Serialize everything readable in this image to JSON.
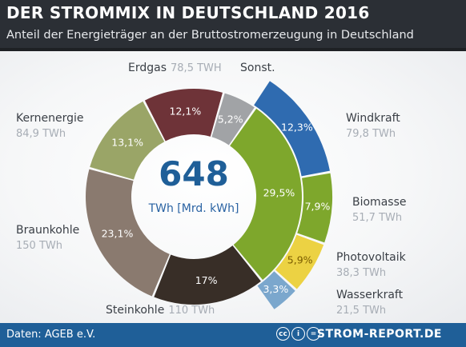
{
  "header": {
    "title": "DER STROMMIX IN DEUTSCHLAND 2016",
    "subtitle": "Anteil der Energieträger an der Bruttostromerzeugung in Deutschland"
  },
  "center": {
    "value": "648",
    "unit": "TWh [Mrd. kWh]"
  },
  "footer": {
    "source": "Daten: AGEB e.V.",
    "brand": "STROM-REPORT.DE",
    "license_icons": [
      "cc-icon",
      "info-icon",
      "equals-icon"
    ]
  },
  "chart_data": {
    "type": "pie",
    "title": "DER STROMMIX IN DEUTSCHLAND 2016",
    "subtitle": "Anteil der Energieträger an der Bruttostromerzeugung in Deutschland",
    "total": "648",
    "unit": "TWh [Mrd. kWh]",
    "outer_ring": [
      {
        "name": "Erdgas",
        "value_label": "78,5 TWH",
        "pct": 12.1,
        "pct_label": "12,1%",
        "color": "#6e3338"
      },
      {
        "name": "Sonst.",
        "value_label": "",
        "pct": 5.2,
        "pct_label": "5,2%",
        "color": "#a1a3a6"
      },
      {
        "name": "",
        "value_label": "",
        "pct": 29.5,
        "pct_label": "29,5%",
        "color": "#7ea72c"
      },
      {
        "name": "Steinkohle",
        "value_label": "110 TWh",
        "pct": 17,
        "pct_label": "17%",
        "color": "#382e27"
      },
      {
        "name": "Braunkohle",
        "value_label": "150 TWh",
        "pct": 23.1,
        "pct_label": "23,1%",
        "color": "#8a7a6f"
      },
      {
        "name": "Kernenergie",
        "value_label": "84,9 TWh",
        "pct": 13.1,
        "pct_label": "13,1%",
        "color": "#9aa567"
      }
    ],
    "renewables_breakdown": [
      {
        "name": "Windkraft",
        "value_label": "79,8 TWh",
        "pct": 12.3,
        "pct_label": "12,3%",
        "color": "#2f6bb0"
      },
      {
        "name": "Biomasse",
        "value_label": "51,7 TWh",
        "pct": 7.9,
        "pct_label": "7,9%",
        "color": "#7ea72c"
      },
      {
        "name": "Photovoltaik",
        "value_label": "38,3 TWh",
        "pct": 5.9,
        "pct_label": "5,9%",
        "color": "#ecd243"
      },
      {
        "name": "Wasserkraft",
        "value_label": "21,5 TWh",
        "pct": 3.3,
        "pct_label": "3,3%",
        "color": "#7ba7cd"
      }
    ]
  }
}
